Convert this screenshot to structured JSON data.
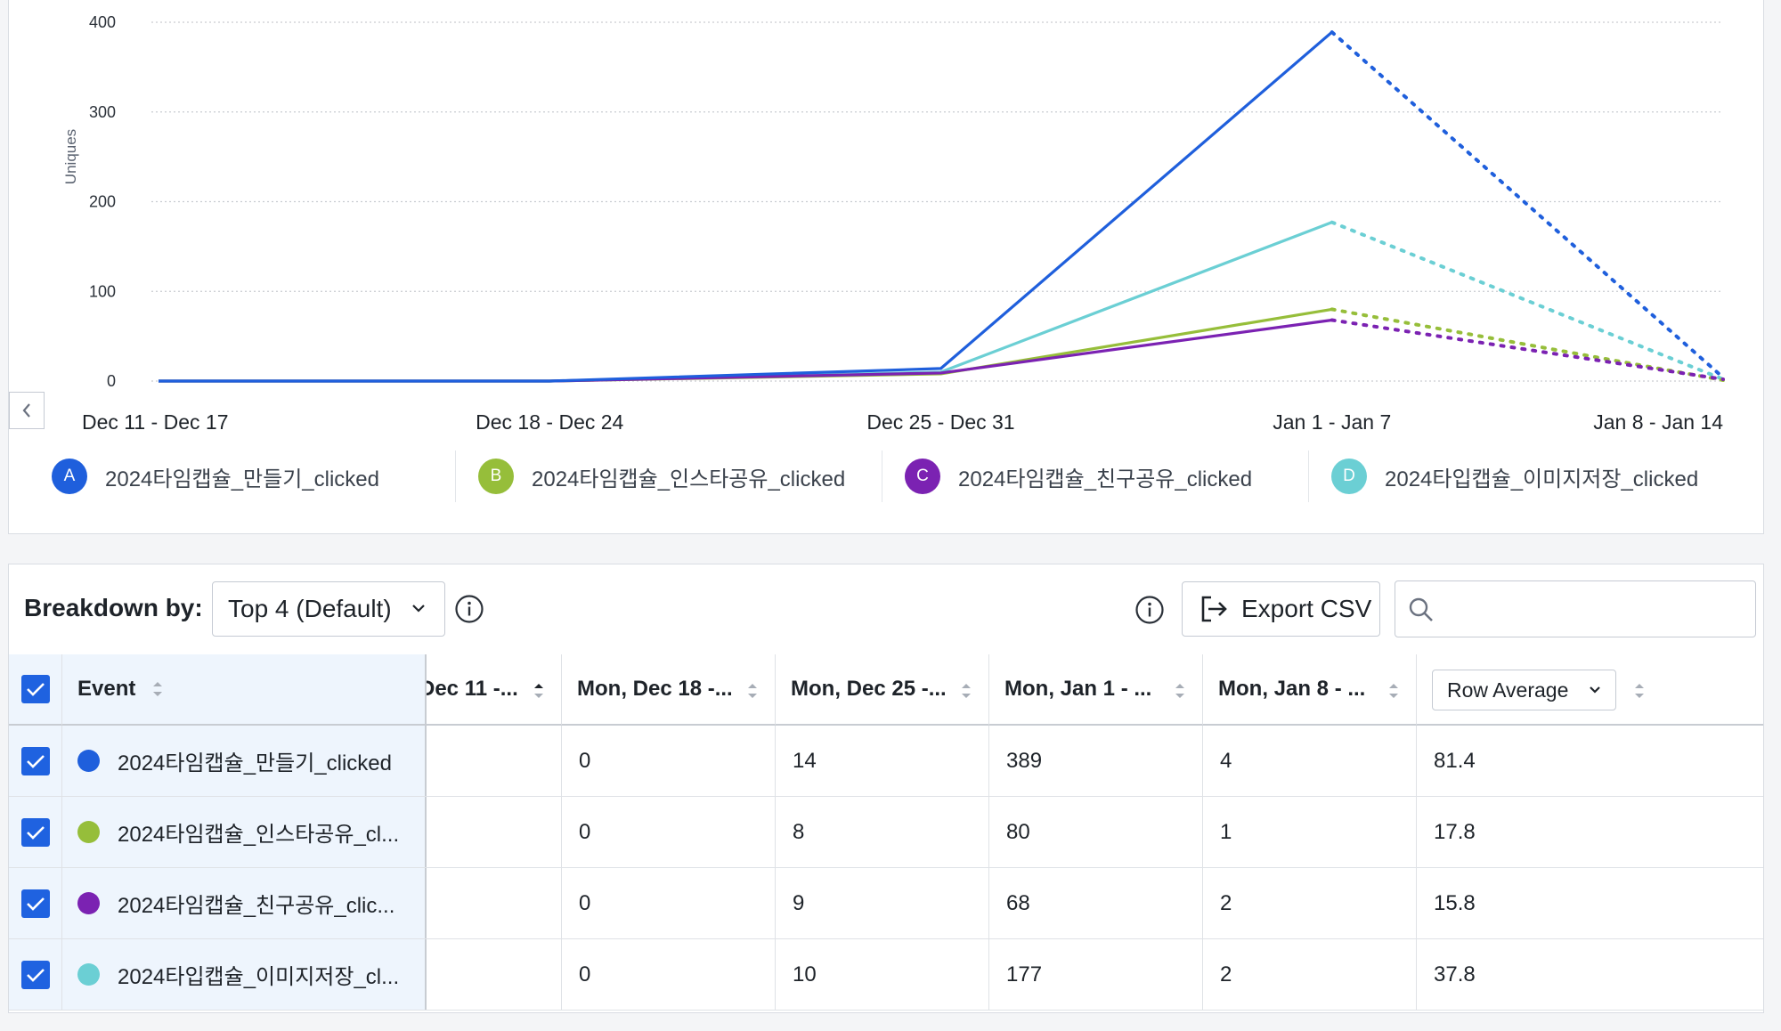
{
  "chart": {
    "y_axis_label": "Uniques",
    "back_icon": "chevron-left-icon"
  },
  "chart_data": {
    "type": "line",
    "ylabel": "Uniques",
    "ylim": [
      0,
      400
    ],
    "yticks": [
      "400",
      "300",
      "200",
      "100",
      "0"
    ],
    "categories": [
      "Dec 11 - Dec 17",
      "Dec 18 - Dec 24",
      "Dec 25 - Dec 31",
      "Jan 1 - Jan 7",
      "Jan 8 - Jan 14"
    ],
    "incomplete_last_period": true,
    "series": [
      {
        "name": "2024타임캡슐_만들기_clicked",
        "letter": "A",
        "color": "#1f5fdc",
        "values": [
          0,
          0,
          14,
          389,
          4
        ]
      },
      {
        "name": "2024타임캡슐_인스타공유_clicked",
        "letter": "B",
        "color": "#96be3a",
        "values": [
          0,
          0,
          8,
          80,
          1
        ]
      },
      {
        "name": "2024타임캡슐_친구공유_clicked",
        "letter": "C",
        "color": "#7b22b2",
        "values": [
          0,
          0,
          9,
          68,
          2
        ]
      },
      {
        "name": "2024타입캡슐_이미지저장_clicked",
        "letter": "D",
        "color": "#6bcfd4",
        "values": [
          0,
          0,
          10,
          177,
          2
        ]
      }
    ]
  },
  "toolbar": {
    "breakdown_label": "Breakdown by:",
    "breakdown_value": "Top 4 (Default)",
    "export_label": "Export CSV",
    "search_placeholder": ""
  },
  "table": {
    "headers": {
      "event": "Event",
      "col1": "Dec 11 -...",
      "col2": "Mon, Dec 18 -...",
      "col3": "Mon, Dec 25 -...",
      "col4": "Mon, Jan 1 - ...",
      "col5": "Mon, Jan 8 - ...",
      "average": "Row Average"
    },
    "rows": [
      {
        "event": "2024타임캡슐_만들기_clicked",
        "color": "#1f5fdc",
        "c1": "",
        "c2": "0",
        "c3": "14",
        "c4": "389",
        "c5": "4",
        "avg": "81.4"
      },
      {
        "event": "2024타임캡슐_인스타공유_cl...",
        "color": "#96be3a",
        "c1": "",
        "c2": "0",
        "c3": "8",
        "c4": "80",
        "c5": "1",
        "avg": "17.8"
      },
      {
        "event": "2024타임캡슐_친구공유_clic...",
        "color": "#7b22b2",
        "c1": "",
        "c2": "0",
        "c3": "9",
        "c4": "68",
        "c5": "2",
        "avg": "15.8"
      },
      {
        "event": "2024타입캡슐_이미지저장_cl...",
        "color": "#6bcfd4",
        "c1": "",
        "c2": "0",
        "c3": "10",
        "c4": "177",
        "c5": "2",
        "avg": "37.8"
      }
    ]
  }
}
